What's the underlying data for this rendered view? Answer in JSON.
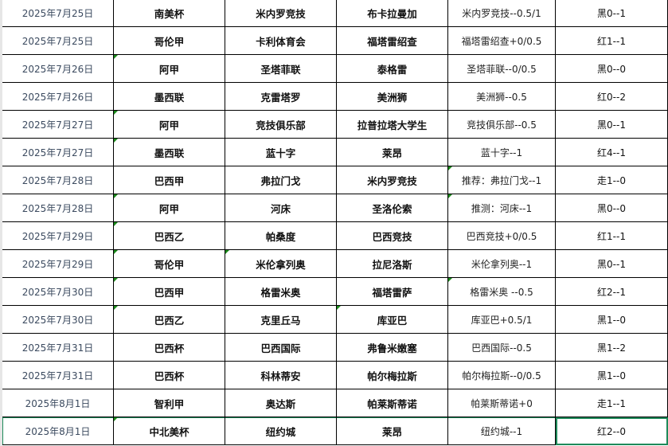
{
  "colors": {
    "flag": "#1a8a1a",
    "selection": "#1e8a5a",
    "date_text": "#3b4a5f"
  },
  "rows": [
    {
      "date": "2025年7月25日",
      "league": "南美杯",
      "home": "米内罗竞技",
      "away": "布卡拉曼加",
      "tip": "米内罗竞技--0.5/1",
      "result": "黑0--1",
      "flags": []
    },
    {
      "date": "2025年7月25日",
      "league": "哥伦甲",
      "home": "卡利体育会",
      "away": "福塔雷绍查",
      "tip": "福塔雷绍查+0/0.5",
      "result": "红1--1",
      "flags": []
    },
    {
      "date": "2025年7月26日",
      "league": "阿甲",
      "home": "圣塔菲联",
      "away": "泰格雷",
      "tip": "圣塔菲联--0/0.5",
      "result": "黑0--0",
      "flags": [
        1
      ]
    },
    {
      "date": "2025年7月26日",
      "league": "墨西联",
      "home": "克雷塔罗",
      "away": "美洲狮",
      "tip": "美洲狮--0.5",
      "result": "红0--2",
      "flags": []
    },
    {
      "date": "2025年7月27日",
      "league": "阿甲",
      "home": "竞技俱乐部",
      "away": "拉普拉塔大学生",
      "tip": "竞技俱乐部--0.5",
      "result": "黑0--1",
      "flags": [
        1
      ]
    },
    {
      "date": "2025年7月27日",
      "league": "墨西联",
      "home": "蓝十字",
      "away": "莱昂",
      "tip": "蓝十字--1",
      "result": "红4--1",
      "flags": [
        1
      ]
    },
    {
      "date": "2025年7月28日",
      "league": "巴西甲",
      "home": "弗拉门戈",
      "away": "米内罗竞技",
      "tip": "推荐：弗拉门戈--1",
      "result": "走1--0",
      "flags": [
        4
      ]
    },
    {
      "date": "2025年7月28日",
      "league": "阿甲",
      "home": "河床",
      "away": "圣洛伦索",
      "tip": "推测：河床--1",
      "result": "黑0--0",
      "flags": [
        1,
        4
      ]
    },
    {
      "date": "2025年7月29日",
      "league": "巴西乙",
      "home": "帕桑度",
      "away": "巴西竞技",
      "tip": "巴西竞技+0/0.5",
      "result": "红1--1",
      "flags": [
        1
      ]
    },
    {
      "date": "2025年7月29日",
      "league": "哥伦甲",
      "home": "米伦拿列奥",
      "away": "拉尼洛斯",
      "tip": "米伦拿列奥--1",
      "result": "黑0--1",
      "flags": [
        1,
        2
      ]
    },
    {
      "date": "2025年7月30日",
      "league": "巴西甲",
      "home": "格雷米奥",
      "away": "福塔雷萨",
      "tip": "格雷米奥 --0.5",
      "result": "红2--1",
      "flags": [
        1,
        4
      ]
    },
    {
      "date": "2025年7月30日",
      "league": "巴西乙",
      "home": "克里丘马",
      "away": "库亚巴",
      "tip": "库亚巴+0.5/1",
      "result": "黑1--0",
      "flags": [
        1,
        3
      ]
    },
    {
      "date": "2025年7月31日",
      "league": "巴西杯",
      "home": "巴西国际",
      "away": "弗鲁米嫩塞",
      "tip": "巴西国际--0.5",
      "result": "黑1--2",
      "flags": []
    },
    {
      "date": "2025年7月31日",
      "league": "巴西杯",
      "home": "科林蒂安",
      "away": "帕尔梅拉斯",
      "tip": "帕尔梅拉斯--0/0.5",
      "result": "黑1--0",
      "flags": []
    },
    {
      "date": "2025年8月1日",
      "league": "智利甲",
      "home": "奥达斯",
      "away": "帕莱斯蒂诺",
      "tip": "帕莱斯蒂诺+0",
      "result": "走1--1",
      "flags": []
    },
    {
      "date": "2025年8月1日",
      "league": "中北美杯",
      "home": "纽约城",
      "away": "莱昂",
      "tip": "纽约城--1",
      "result": "红2--0",
      "flags": [
        1
      ],
      "selected": true
    }
  ]
}
